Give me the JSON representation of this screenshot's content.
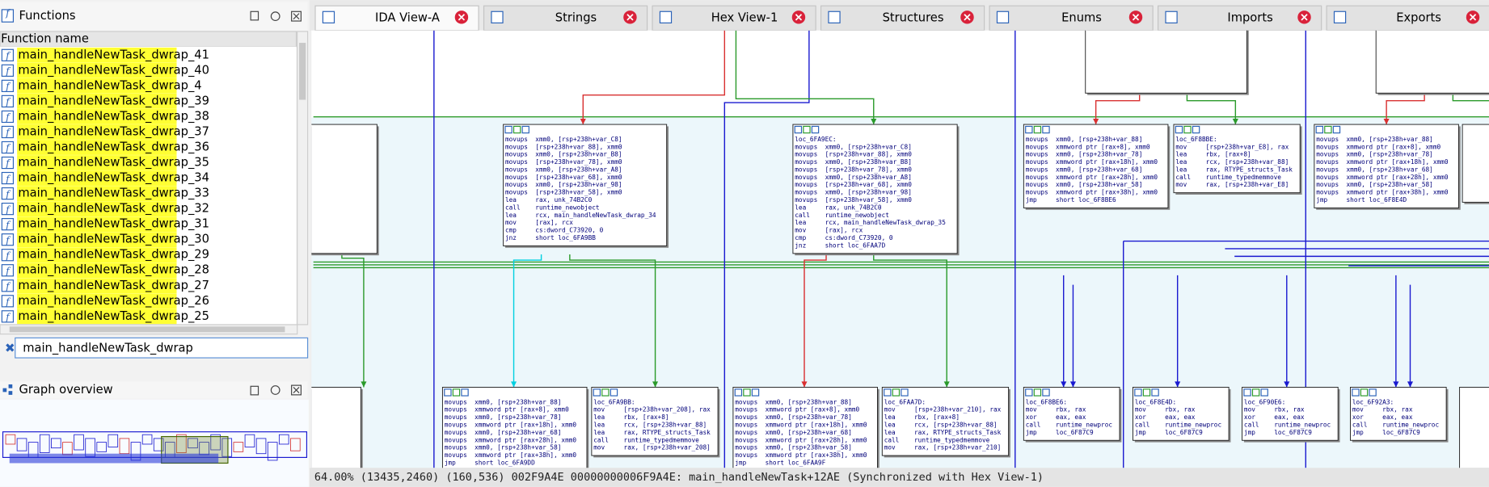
{
  "functions_panel": {
    "title": "Functions",
    "column": "Function name",
    "items": [
      "main_handleNewTask_dwrap_41",
      "main_handleNewTask_dwrap_40",
      "main_handleNewTask_dwrap_4",
      "main_handleNewTask_dwrap_39",
      "main_handleNewTask_dwrap_38",
      "main_handleNewTask_dwrap_37",
      "main_handleNewTask_dwrap_36",
      "main_handleNewTask_dwrap_35",
      "main_handleNewTask_dwrap_34",
      "main_handleNewTask_dwrap_33",
      "main_handleNewTask_dwrap_32",
      "main_handleNewTask_dwrap_31",
      "main_handleNewTask_dwrap_30",
      "main_handleNewTask_dwrap_29",
      "main_handleNewTask_dwrap_28",
      "main_handleNewTask_dwrap_27",
      "main_handleNewTask_dwrap_26",
      "main_handleNewTask_dwrap_25"
    ],
    "search": "main_handleNewTask_dwrap"
  },
  "overview_panel": {
    "title": "Graph overview"
  },
  "tabs": [
    "IDA View-A",
    "Strings",
    "Hex View-1",
    "Structures",
    "Enums",
    "Imports",
    "Exports"
  ],
  "graph": {
    "blocks": [
      {
        "lines": [
          "movups  xmm0, [rsp+238h+var_C8]",
          "movups  [rsp+238h+var_88], xmm0",
          "movups  xmm0, [rsp+238h+var_B8]",
          "movups  [rsp+238h+var_78], xmm0",
          "movups  xmm0, [rsp+238h+var_A8]",
          "movups  [rsp+238h+var_68], xmm0",
          "movups  xmm0, [rsp+238h+var_98]",
          "movups  [rsp+238h+var_58], xmm0",
          "lea     rax, unk_74B2C0",
          "call    runtime_newobject",
          "lea     rcx, main_handleNewTask_dwrap_34",
          "mov     [rax], rcx",
          "cmp     cs:dword_C73920, 0",
          "jnz     short loc_6FA9BB"
        ]
      },
      {
        "lines": [
          "loc_6FA9EC:",
          "movups  xmm0, [rsp+238h+var_C8]",
          "movups  [rsp+238h+var_88], xmm0",
          "movups  xmm0, [rsp+238h+var_B8]",
          "movups  [rsp+238h+var_78], xmm0",
          "movups  xmm0, [rsp+238h+var_A8]",
          "movups  [rsp+238h+var_68], xmm0",
          "movups  xmm0, [rsp+238h+var_98]",
          "movups  [rsp+238h+var_58], xmm0",
          "lea     rax, unk_74B2C0",
          "call    runtime_newobject",
          "lea     rcx, main_handleNewTask_dwrap_35",
          "mov     [rax], rcx",
          "cmp     cs:dword_C73920, 0",
          "jnz     short loc_6FAA7D"
        ]
      },
      {
        "lines": [
          "movups  xmm0, [rsp+238h+var_88]",
          "movups  xmmword ptr [rax+8], xmm0",
          "movups  xmm0, [rsp+238h+var_78]",
          "movups  xmmword ptr [rax+18h], xmm0",
          "movups  xmm0, [rsp+238h+var_68]",
          "movups  xmmword ptr [rax+28h], xmm0",
          "movups  xmm0, [rsp+238h+var_58]",
          "movups  xmmword ptr [rax+38h], xmm0",
          "jmp     short loc_6F8BE6"
        ]
      },
      {
        "lines": [
          "loc_6F8BBE:",
          "mov     [rsp+238h+var_E8], rax",
          "lea     rbx, [rax+8]",
          "lea     rcx, [rsp+238h+var_88]",
          "lea     rax, RTYPE_structs_Task",
          "call    runtime_typedmemmove",
          "mov     rax, [rsp+238h+var_E8]"
        ]
      },
      {
        "lines": [
          "movups  xmm0, [rsp+238h+var_88]",
          "movups  xmmword ptr [rax+8], xmm0",
          "movups  xmm0, [rsp+238h+var_78]",
          "movups  xmmword ptr [rax+18h], xmm0",
          "movups  xmm0, [rsp+238h+var_68]",
          "movups  xmmword ptr [rax+28h], xmm0",
          "movups  xmm0, [rsp+238h+var_58]",
          "movups  xmmword ptr [rax+38h], xmm0",
          "jmp     short loc_6F8E4D"
        ]
      },
      {
        "lines": [
          "movups  xmm0, [rsp+238h+var_88]",
          "movups  xmmword ptr [rax+8], xmm0",
          "movups  xmm0, [rsp+238h+var_78]",
          "movups  xmmword ptr [rax+18h], xmm0",
          "movups  xmm0, [rsp+238h+var_68]",
          "movups  xmmword ptr [rax+28h], xmm0",
          "movups  xmm0, [rsp+238h+var_58]",
          "movups  xmmword ptr [rax+38h], xmm0",
          "jmp     short loc_6FA9DD"
        ]
      },
      {
        "lines": [
          "loc_6FA9BB:",
          "mov     [rsp+238h+var_208], rax",
          "lea     rbx, [rax+8]",
          "lea     rcx, [rsp+238h+var_88]",
          "lea     rax, RTYPE_structs_Task",
          "call    runtime_typedmemmove",
          "mov     rax, [rsp+238h+var_208]"
        ]
      },
      {
        "lines": [
          "movups  xmm0, [rsp+238h+var_88]",
          "movups  xmmword ptr [rax+8], xmm0",
          "movups  xmm0, [rsp+238h+var_78]",
          "movups  xmmword ptr [rax+18h], xmm0",
          "movups  xmm0, [rsp+238h+var_68]",
          "movups  xmmword ptr [rax+28h], xmm0",
          "movups  xmm0, [rsp+238h+var_58]",
          "movups  xmmword ptr [rax+38h], xmm0",
          "jmp     short loc_6FAA9F"
        ]
      },
      {
        "lines": [
          "loc_6FAA7D:",
          "mov     [rsp+238h+var_210], rax",
          "lea     rbx, [rax+8]",
          "lea     rcx, [rsp+238h+var_88]",
          "lea     rax, RTYPE_structs_Task",
          "call    runtime_typedmemmove",
          "mov     rax, [rsp+238h+var_210]"
        ]
      },
      {
        "lines": [
          "loc_6F8BE6:",
          "mov     rbx, rax",
          "xor     eax, eax",
          "call    runtime_newproc",
          "jmp     loc_6F87C9"
        ]
      },
      {
        "lines": [
          "loc_6F8E4D:",
          "mov     rbx, rax",
          "xor     eax, eax",
          "call    runtime_newproc",
          "jmp     loc_6F87C9"
        ]
      },
      {
        "lines": [
          "loc_6F90E6:",
          "mov     rbx, rax",
          "xor     eax, eax",
          "call    runtime_newproc",
          "jmp     loc_6F87C9"
        ]
      },
      {
        "lines": [
          "loc_6F92A3:",
          "mov     rbx, rax",
          "xor     eax, eax",
          "call    runtime_newproc",
          "jmp     loc_6F87C9"
        ]
      }
    ]
  },
  "status": "64.00% (13435,2460) (160,536) 002F9A4E 00000000006F9A4E: main_handleNewTask+12AE (Synchronized with Hex View-1)"
}
